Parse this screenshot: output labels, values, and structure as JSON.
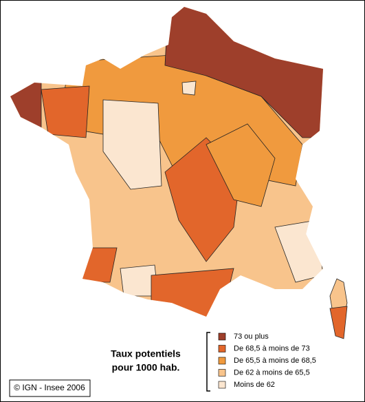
{
  "map": {
    "caption": [
      "Taux potentiels",
      "pour 1000 hab."
    ],
    "copyright": "© IGN - Insee 2006",
    "legend": [
      {
        "label": "73 ou plus",
        "color": "#9e3f2b"
      },
      {
        "label": "De 68,5 à moins de 73",
        "color": "#e2662b"
      },
      {
        "label": "De 65,5 à moins de 68,5",
        "color": "#f09a3e"
      },
      {
        "label": "De 62 à moins de 65,5",
        "color": "#f8c48c"
      },
      {
        "label": "Moins de 62",
        "color": "#fbe6d0"
      }
    ]
  }
}
